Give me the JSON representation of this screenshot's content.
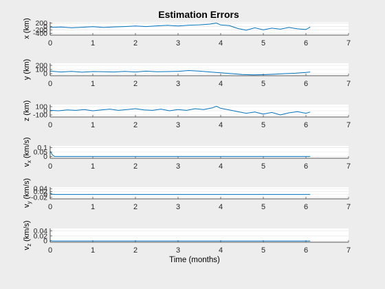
{
  "figure": {
    "title": "Estimation Errors",
    "colors": {
      "background": "#ededed",
      "axes_bg": "#ffffff",
      "line": "#0072bd",
      "grid": "#dfdfdf",
      "axis": "#262626"
    }
  },
  "chart_data": [
    {
      "type": "line",
      "ylabel": "x (km)",
      "xlabel": "",
      "xlim": [
        0,
        7
      ],
      "ylim": [
        -500,
        250
      ],
      "xticks": [
        "0",
        "1",
        "2",
        "3",
        "4",
        "5",
        "6",
        "7"
      ],
      "yticks": [
        200,
        0,
        -200,
        -400
      ],
      "ytick_labels": [
        "200",
        "0",
        "-200",
        "-400"
      ],
      "grid": true,
      "series": [
        {
          "x": [
            0,
            0.25,
            0.5,
            0.75,
            1,
            1.25,
            1.5,
            1.75,
            2,
            2.25,
            2.5,
            2.75,
            3,
            3.25,
            3.5,
            3.75,
            3.9,
            4,
            4.2,
            4.4,
            4.6,
            4.8,
            5,
            5.2,
            5.4,
            5.6,
            5.8,
            6,
            6.1
          ],
          "y": [
            -60,
            -40,
            -80,
            -50,
            -20,
            -60,
            -30,
            -10,
            20,
            -10,
            30,
            60,
            20,
            70,
            90,
            130,
            190,
            80,
            50,
            -120,
            -220,
            -80,
            -200,
            -100,
            -160,
            -60,
            -140,
            -180,
            -40
          ]
        }
      ]
    },
    {
      "type": "line",
      "ylabel": "y (km)",
      "xlabel": "",
      "xlim": [
        0,
        7
      ],
      "ylim": [
        -50,
        250
      ],
      "xticks": [
        "0",
        "1",
        "2",
        "3",
        "4",
        "5",
        "6",
        "7"
      ],
      "yticks": [
        200,
        100,
        0
      ],
      "ytick_labels": [
        "200",
        "100",
        "0"
      ],
      "grid": true,
      "series": [
        {
          "x": [
            0,
            0.25,
            0.5,
            0.75,
            1,
            1.25,
            1.5,
            1.75,
            2,
            2.25,
            2.5,
            2.75,
            3,
            3.25,
            3.5,
            3.75,
            4,
            4.25,
            4.5,
            4.75,
            5,
            5.25,
            5.5,
            5.75,
            6,
            6.1
          ],
          "y": [
            60,
            40,
            55,
            35,
            50,
            45,
            40,
            55,
            40,
            60,
            45,
            50,
            55,
            75,
            60,
            40,
            20,
            0,
            -20,
            -30,
            -25,
            -15,
            0,
            10,
            30,
            40
          ]
        }
      ]
    },
    {
      "type": "line",
      "ylabel": "z (km)",
      "xlabel": "",
      "xlim": [
        0,
        7
      ],
      "ylim": [
        -150,
        150
      ],
      "xticks": [
        "0",
        "1",
        "2",
        "3",
        "4",
        "5",
        "6",
        "7"
      ],
      "yticks": [
        100,
        0,
        -100
      ],
      "ytick_labels": [
        "100",
        "0",
        "-100"
      ],
      "grid": true,
      "series": [
        {
          "x": [
            0,
            0.2,
            0.4,
            0.6,
            0.8,
            1,
            1.2,
            1.4,
            1.6,
            1.8,
            2,
            2.2,
            2.4,
            2.6,
            2.8,
            3,
            3.2,
            3.4,
            3.6,
            3.8,
            3.9,
            4,
            4.2,
            4.4,
            4.6,
            4.8,
            5,
            5.2,
            5.4,
            5.6,
            5.8,
            6,
            6.1
          ],
          "y": [
            10,
            0,
            20,
            10,
            30,
            0,
            20,
            40,
            10,
            30,
            50,
            20,
            10,
            40,
            0,
            30,
            10,
            50,
            30,
            70,
            110,
            60,
            20,
            -20,
            -60,
            -30,
            -80,
            -40,
            -100,
            -50,
            -20,
            -60,
            -30
          ]
        }
      ]
    },
    {
      "type": "line",
      "ylabel": "v",
      "ylabel_sub": "x",
      "ylabel_unit": "(km/s)",
      "xlabel": "",
      "xlim": [
        0,
        7
      ],
      "ylim": [
        -0.02,
        0.12
      ],
      "xticks": [
        "0",
        "1",
        "2",
        "3",
        "4",
        "5",
        "6",
        "7"
      ],
      "yticks": [
        0.1,
        0.05,
        0
      ],
      "ytick_labels": [
        "0.1",
        "0.05",
        "0"
      ],
      "grid": true,
      "series": [
        {
          "x": [
            0,
            0.05,
            0.1,
            1,
            2,
            3,
            4,
            5,
            6,
            6.1
          ],
          "y": [
            0.06,
            0.02,
            0.0,
            0.0,
            0.0,
            0.0,
            0.0,
            0.0,
            0.0,
            0.0
          ]
        }
      ]
    },
    {
      "type": "line",
      "ylabel": "v",
      "ylabel_sub": "y",
      "ylabel_unit": "(km/s)",
      "xlabel": "",
      "xlim": [
        0,
        7
      ],
      "ylim": [
        -0.03,
        0.05
      ],
      "xticks": [
        "0",
        "1",
        "2",
        "3",
        "4",
        "5",
        "6",
        "7"
      ],
      "yticks": [
        0.04,
        0.02,
        0,
        -0.02
      ],
      "ytick_labels": [
        "0.04",
        "0.02",
        "0",
        "-0.02"
      ],
      "grid": true,
      "series": [
        {
          "x": [
            0,
            0.05,
            0.1,
            1,
            2,
            3,
            4,
            5,
            6,
            6.1
          ],
          "y": [
            0.01,
            0.002,
            0.0,
            0.0,
            0.0,
            0.0,
            0.0,
            0.0,
            0.0,
            0.0
          ]
        }
      ]
    },
    {
      "type": "line",
      "ylabel": "v",
      "ylabel_sub": "z",
      "ylabel_unit": "(km/s)",
      "xlabel": "Time (months)",
      "xlim": [
        0,
        7
      ],
      "ylim": [
        -0.005,
        0.05
      ],
      "xticks": [
        "0",
        "1",
        "2",
        "3",
        "4",
        "5",
        "6",
        "7"
      ],
      "yticks": [
        0.04,
        0.02,
        0
      ],
      "ytick_labels": [
        "0.04",
        "0.02",
        "0"
      ],
      "grid": true,
      "series": [
        {
          "x": [
            0,
            0.05,
            0.1,
            1,
            2,
            3,
            4,
            5,
            6,
            6.1
          ],
          "y": [
            0.002,
            0.0,
            0.0,
            0.0,
            0.0,
            0.0,
            0.0,
            0.0,
            0.0,
            0.0
          ]
        }
      ]
    }
  ]
}
